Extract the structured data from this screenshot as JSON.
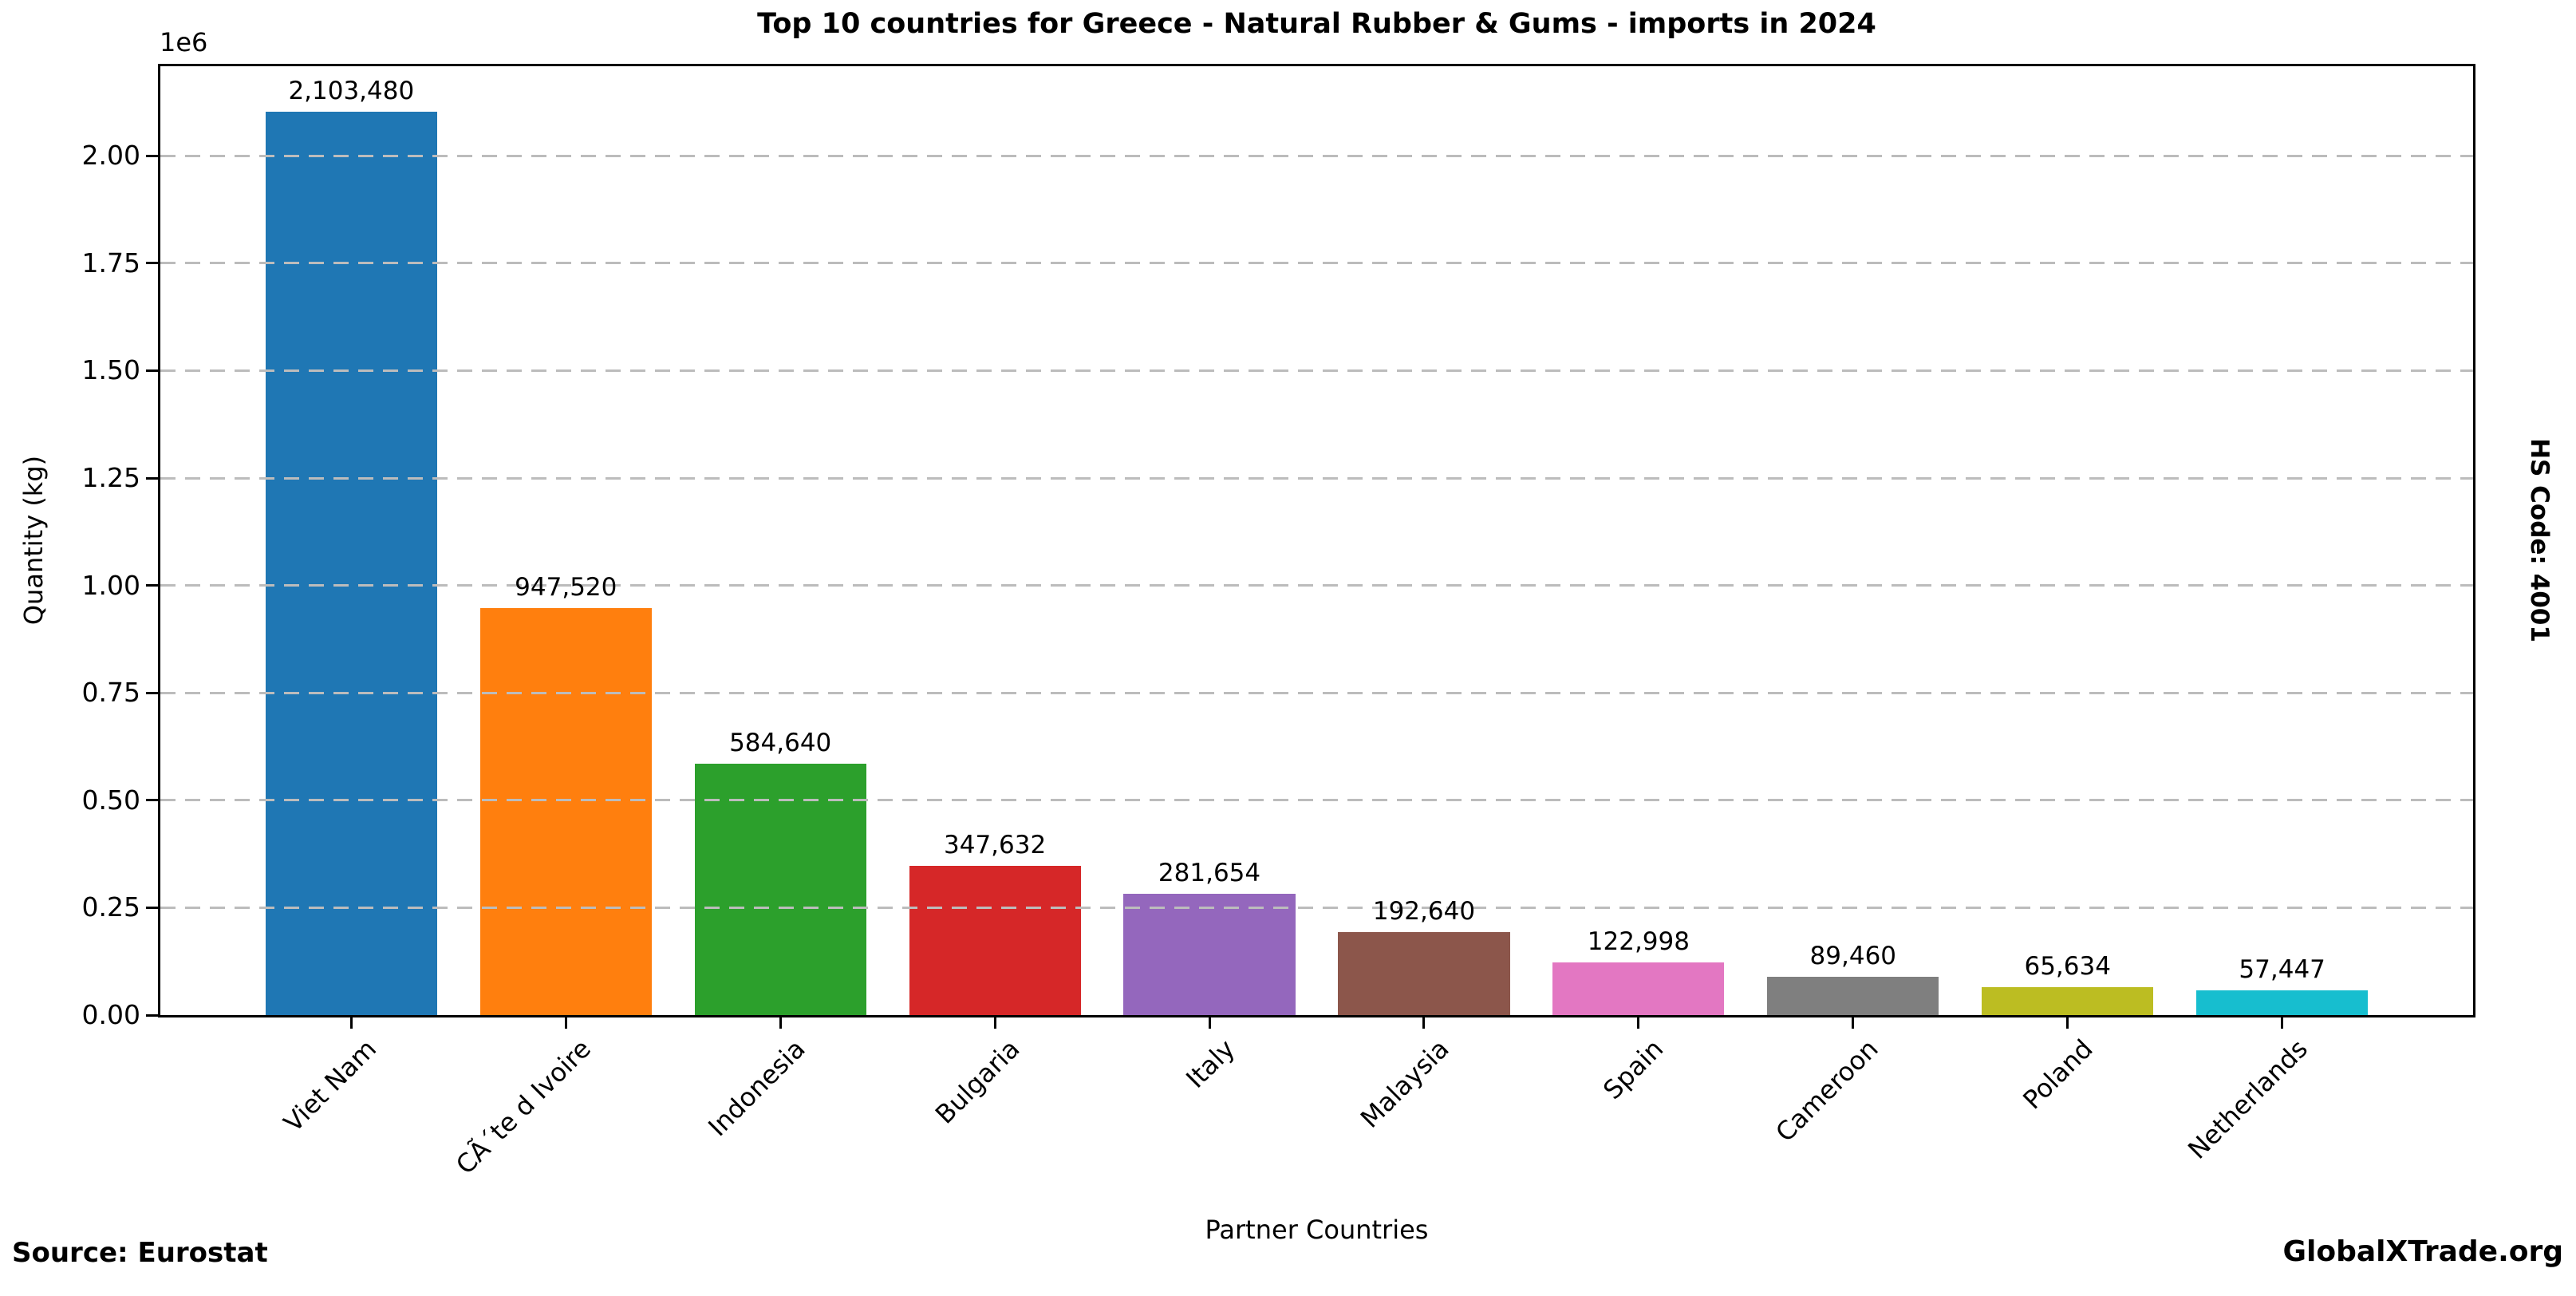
{
  "chart_data": {
    "type": "bar",
    "title": "Top 10 countries for Greece - Natural Rubber & Gums - imports in 2024",
    "xlabel": "Partner Countries",
    "ylabel": "Quantity (kg)",
    "categories": [
      "Viet Nam",
      "CÃ´te d Ivoire",
      "Indonesia",
      "Bulgaria",
      "Italy",
      "Malaysia",
      "Spain",
      "Cameroon",
      "Poland",
      "Netherlands"
    ],
    "values": [
      2103480,
      947520,
      584640,
      347632,
      281654,
      192640,
      122998,
      89460,
      65634,
      57447
    ],
    "value_labels": [
      "2,103,480",
      "947,520",
      "584,640",
      "347,632",
      "281,654",
      "192,640",
      "122,998",
      "89,460",
      "65,634",
      "57,447"
    ],
    "bar_colors": [
      "#1f77b4",
      "#ff7f0e",
      "#2ca02c",
      "#d62728",
      "#9467bd",
      "#8c564b",
      "#e377c2",
      "#7f7f7f",
      "#bcbd22",
      "#17becf"
    ],
    "ylim": [
      0,
      2208654
    ],
    "y_axis": {
      "offset_text": "1e6",
      "tick_labels": [
        "0.00",
        "0.25",
        "0.50",
        "0.75",
        "1.00",
        "1.25",
        "1.50",
        "1.75",
        "2.00"
      ],
      "tick_values": [
        0,
        250000,
        500000,
        750000,
        1000000,
        1250000,
        1500000,
        1750000,
        2000000
      ]
    },
    "grid": "horizontal dashed, drawn over bars",
    "legend": "none",
    "gridline_color": "#bcbcbc",
    "bar_width_fraction": 0.8
  },
  "annotations": {
    "source": "Source: Eurostat",
    "watermark": "GlobalXTrade.org",
    "hs_code": "HS Code: 4001"
  }
}
